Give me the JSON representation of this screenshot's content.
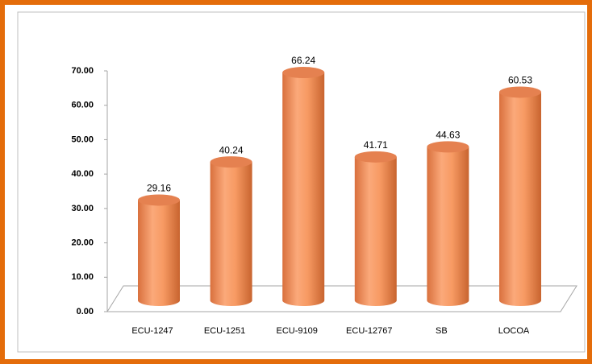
{
  "chart_data": {
    "type": "bar",
    "categories": [
      "ECU-1247",
      "ECU-1251",
      "ECU-9109",
      "ECU-12767",
      "SB",
      "LOCOA"
    ],
    "values": [
      29.16,
      40.24,
      66.24,
      41.71,
      44.63,
      60.53
    ],
    "color": "#f79a63",
    "ylim": [
      0,
      70
    ],
    "yticks": [
      {
        "value": 0,
        "label": "0.00"
      },
      {
        "value": 10,
        "label": "10.00"
      },
      {
        "value": 20,
        "label": "20.00"
      },
      {
        "value": 30,
        "label": "30.00"
      },
      {
        "value": 40,
        "label": "40.00"
      },
      {
        "value": 50,
        "label": "50.00"
      },
      {
        "value": 60,
        "label": "60.00"
      },
      {
        "value": 70,
        "label": "70.00"
      }
    ],
    "grid": false
  }
}
